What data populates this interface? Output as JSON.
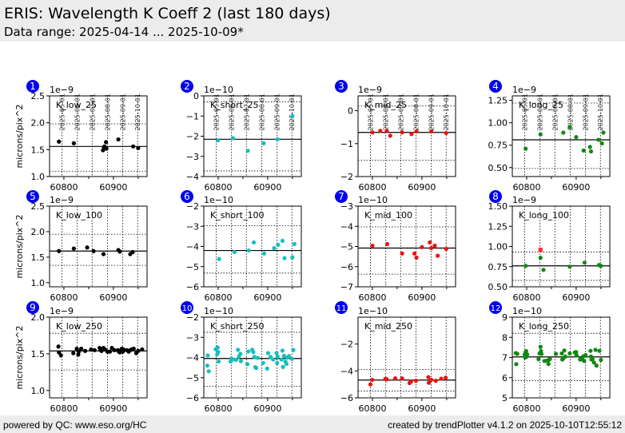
{
  "header": {
    "title": "ERIS: Wavelength K Coeff 2 (last 180 days)",
    "subtitle": "Data range: 2025-04-14 ... 2025-10-09*"
  },
  "footer": {
    "left": "powered by QC: www.eso.org/HC",
    "right": "created by trendPlotter v4.1.2 on 2025-10-10T12:55:12"
  },
  "colors": {
    "badge": "#0000ee",
    "low": "#000000",
    "short": "#17bebe",
    "mid": "#ee1111",
    "long": "#118811",
    "outlier": "#ff3333",
    "header_bg": "#ececec"
  },
  "chart_data": {
    "type": "scatter",
    "ylabel": "microns/pix^2",
    "xlim": [
      60771,
      60968
    ],
    "x_ticks": [
      60800,
      60900
    ],
    "x_tick_labels": [
      "60800",
      "60900"
    ],
    "date_ticks_mjd": [
      60796,
      60827,
      60857,
      60888,
      60919,
      60949
    ],
    "date_tick_labels": [
      "2025-05-01",
      "2025-06-01",
      "2025-07-01",
      "2025-08-01",
      "2025-09-01",
      "2025-10-01"
    ],
    "panels": [
      {
        "id": "1",
        "label": "K_low_25",
        "series": "low",
        "exponent": "1e−9",
        "ylim": [
          1.0,
          2.5
        ],
        "yticks": [
          1.0,
          1.5,
          2.0,
          2.5
        ],
        "ytick_labels": [
          "1.0",
          "1.5",
          "2.0",
          "2.5"
        ],
        "median": 1.56,
        "band": [
          1.1,
          1.98
        ],
        "x": [
          60790,
          60820,
          60879,
          60881,
          60882,
          60883,
          60885,
          60886,
          60910,
          60940,
          60950
        ],
        "y": [
          1.65,
          1.62,
          1.49,
          1.54,
          1.56,
          1.53,
          1.64,
          1.52,
          1.69,
          1.56,
          1.53
        ]
      },
      {
        "id": "2",
        "label": "K_short_25",
        "series": "short",
        "exponent": "1e−10",
        "ylim": [
          -4,
          0
        ],
        "yticks": [
          -4,
          -3,
          -2,
          -1,
          0
        ],
        "ytick_labels": [
          "−4",
          "−3",
          "−2",
          "−1",
          "0"
        ],
        "median": -2.15,
        "band": [
          -3.72,
          -0.3
        ],
        "x": [
          60800,
          60830,
          60860,
          60892,
          60920,
          60950
        ],
        "y": [
          -2.2,
          -2.1,
          -2.72,
          -2.35,
          -2.15,
          -1.0
        ]
      },
      {
        "id": "3",
        "label": "K_mid_25",
        "series": "mid",
        "exponent": "1e−9",
        "ylim": [
          -2,
          0.45
        ],
        "yticks": [
          -2,
          -1,
          0
        ],
        "ytick_labels": [
          "−2",
          "−1",
          "0"
        ],
        "median": -0.66,
        "band": [
          -1.5,
          0.14
        ],
        "x": [
          60800,
          60816,
          60829,
          60836,
          60860,
          60879,
          60889,
          60919,
          60949
        ],
        "y": [
          -0.66,
          -0.61,
          -0.61,
          -0.76,
          -0.66,
          -0.71,
          -0.63,
          -0.63,
          -0.68
        ]
      },
      {
        "id": "4",
        "label": "K_long_25",
        "series": "long",
        "exponent": "1e−9",
        "ylim": [
          0.4,
          1.3
        ],
        "yticks": [
          0.5,
          0.75,
          1.0,
          1.25
        ],
        "ytick_labels": [
          "0.50",
          "0.75",
          "1.00",
          "1.25"
        ],
        "median": 0.81,
        "band": [
          0.49,
          1.22
        ],
        "x": [
          60798,
          60828,
          60874,
          60887,
          60900,
          60915,
          60928,
          60930,
          60945,
          60952,
          60955
        ],
        "y": [
          0.71,
          0.87,
          0.89,
          0.95,
          0.84,
          0.69,
          0.73,
          0.68,
          0.81,
          0.77,
          0.89
        ]
      },
      {
        "id": "5",
        "label": "K_low_100",
        "series": "low",
        "exponent": "1e−9",
        "ylim": [
          0.92,
          2.5
        ],
        "yticks": [
          1.0,
          1.5,
          2.0,
          2.5
        ],
        "ytick_labels": [
          "1.0",
          "1.5",
          "2.0",
          "2.5"
        ],
        "median": 1.62,
        "band": [
          1.34,
          1.95
        ],
        "x": [
          60790,
          60820,
          60847,
          60860,
          60880,
          60910,
          60913,
          60934,
          60939
        ],
        "y": [
          1.62,
          1.67,
          1.69,
          1.62,
          1.56,
          1.64,
          1.61,
          1.56,
          1.6
        ]
      },
      {
        "id": "6",
        "label": "K_short_100",
        "series": "short",
        "exponent": "1e−10",
        "ylim": [
          -6,
          -2
        ],
        "yticks": [
          -6,
          -5,
          -4,
          -3,
          -2
        ],
        "ytick_labels": [
          "−6",
          "−5",
          "−4",
          "−3",
          "−2"
        ],
        "median": -4.2,
        "band": [
          -5.32,
          -2.97
        ],
        "x": [
          60802,
          60833,
          60862,
          60872,
          60893,
          60913,
          60921,
          60930,
          60934,
          60950,
          60954
        ],
        "y": [
          -4.62,
          -4.28,
          -4.2,
          -3.8,
          -4.35,
          -4.08,
          -3.92,
          -3.72,
          -4.58,
          -4.54,
          -3.88
        ]
      },
      {
        "id": "7",
        "label": "K_mid_100",
        "series": "mid",
        "exponent": "1e−10",
        "ylim": [
          -7,
          -3
        ],
        "yticks": [
          -7,
          -6,
          -5,
          -4,
          -3
        ],
        "ytick_labels": [
          "−7",
          "−6",
          "−5",
          "−4",
          "−3"
        ],
        "median": -5.08,
        "band": [
          -6.37,
          -4.03
        ],
        "x": [
          60800,
          60830,
          60860,
          60885,
          60889,
          60900,
          60916,
          60919,
          60926,
          60932,
          60949
        ],
        "y": [
          -4.96,
          -4.88,
          -5.35,
          -5.35,
          -5.55,
          -5.03,
          -4.8,
          -5.08,
          -4.96,
          -5.46,
          -5.12
        ]
      },
      {
        "id": "8",
        "label": "K_long_100",
        "series": "long",
        "exponent": "1e−9",
        "ylim": [
          0.5,
          1.5
        ],
        "yticks": [
          0.5,
          0.75,
          1.0,
          1.25,
          1.5
        ],
        "ytick_labels": [
          "0.50",
          "0.75",
          "1.00",
          "1.25",
          "1.50"
        ],
        "median": 0.76,
        "band": [
          0.58,
          0.93
        ],
        "x": [
          60798,
          60828,
          60834,
          60887,
          60917,
          60946,
          60950
        ],
        "y": [
          0.76,
          0.86,
          0.71,
          0.75,
          0.8,
          0.77,
          0.76
        ],
        "outliers": [
          {
            "x": 60828,
            "y": 0.96
          }
        ]
      },
      {
        "id": "9",
        "label": "K_low_250",
        "series": "low",
        "exponent": "1e−9",
        "ylim": [
          0.9,
          2.0
        ],
        "yticks": [
          1.0,
          1.5,
          2.0
        ],
        "ytick_labels": [
          "1.0",
          "1.5",
          "2.0"
        ],
        "median": 1.54,
        "band": [
          1.28,
          1.78
        ],
        "x": [
          60789,
          60790,
          60794,
          60819,
          60826,
          60829,
          60830,
          60835,
          60843,
          60855,
          60862,
          60872,
          60874,
          60876,
          60880,
          60883,
          60888,
          60893,
          60897,
          60902,
          60909,
          60911,
          60913,
          60915,
          60917,
          60919,
          60920,
          60927,
          60931,
          60934,
          60937,
          60941,
          60946,
          60950,
          60958
        ],
        "y": [
          1.6,
          1.52,
          1.48,
          1.51,
          1.57,
          1.49,
          1.53,
          1.57,
          1.54,
          1.56,
          1.55,
          1.58,
          1.55,
          1.54,
          1.58,
          1.56,
          1.53,
          1.53,
          1.58,
          1.55,
          1.55,
          1.53,
          1.52,
          1.55,
          1.57,
          1.53,
          1.56,
          1.55,
          1.53,
          1.55,
          1.56,
          1.57,
          1.51,
          1.54,
          1.56
        ]
      },
      {
        "id": "10",
        "label": "K_short_250",
        "series": "short",
        "exponent": "1e−10",
        "ylim": [
          -6,
          -2
        ],
        "yticks": [
          -6,
          -5,
          -4,
          -3,
          -2
        ],
        "ytick_labels": [
          "−6",
          "−5",
          "−4",
          "−3",
          "−2"
        ],
        "median": -4.05,
        "band": [
          -5.43,
          -2.75
        ],
        "x": [
          60778,
          60779,
          60781,
          60795,
          60798,
          60799,
          60800,
          60801,
          60825,
          60827,
          60829,
          60836,
          60840,
          60842,
          60845,
          60846,
          60859,
          60861,
          60869,
          60871,
          60873,
          60875,
          60877,
          60880,
          60891,
          60899,
          60901,
          60906,
          60911,
          60918,
          60919,
          60920,
          60928,
          60930,
          60931,
          60933,
          60936,
          60938,
          60940,
          60943,
          60949,
          60952
        ],
        "y": [
          -4.4,
          -3.9,
          -4.68,
          -3.59,
          -3.84,
          -3.5,
          -3.72,
          -4.2,
          -4.2,
          -4.05,
          -4.1,
          -4.12,
          -3.62,
          -3.95,
          -3.82,
          -4.18,
          -4.33,
          -3.7,
          -3.62,
          -3.73,
          -3.97,
          -4.48,
          -4.52,
          -4.02,
          -4.27,
          -4.55,
          -3.78,
          -3.97,
          -4.1,
          -3.78,
          -4.27,
          -3.95,
          -4.1,
          -3.66,
          -4.47,
          -3.92,
          -4.2,
          -4.32,
          -4.0,
          -3.93,
          -4.07,
          -3.63
        ]
      },
      {
        "id": "11",
        "label": "K_mid_250",
        "series": "mid",
        "exponent": "1e−10",
        "ylim": [
          -6,
          0
        ],
        "yticks": [
          -6,
          -4,
          -2
        ],
        "ytick_labels": [
          "−6",
          "−4",
          "−2"
        ],
        "median": -4.68,
        "band": [
          -5.5,
          -3.9
        ],
        "x": [
          60796,
          60800,
          60826,
          60829,
          60846,
          60860,
          60875,
          60878,
          60888,
          60913,
          60914,
          60919,
          60928,
          60939,
          60948
        ],
        "y": [
          -5.0,
          -4.66,
          -4.6,
          -4.62,
          -4.55,
          -4.56,
          -4.9,
          -4.8,
          -4.73,
          -4.46,
          -4.88,
          -4.66,
          -4.73,
          -4.57,
          -4.5
        ]
      },
      {
        "id": "12",
        "label": "K_long_250",
        "series": "long",
        "exponent": "1e−10",
        "ylim": [
          5,
          9
        ],
        "yticks": [
          5,
          6,
          7,
          8,
          9
        ],
        "ytick_labels": [
          "5",
          "6",
          "7",
          "8",
          "9"
        ],
        "median": 7.03,
        "band": [
          5.85,
          8.2
        ],
        "x": [
          60778,
          60779,
          60781,
          60796,
          60797,
          60798,
          60799,
          60800,
          60801,
          60824,
          60826,
          60828,
          60829,
          60830,
          60836,
          60841,
          60844,
          60845,
          60847,
          60859,
          60871,
          60872,
          60874,
          60876,
          60878,
          60887,
          60897,
          60900,
          60901,
          60908,
          60912,
          60914,
          60916,
          60919,
          60929,
          60930,
          60931,
          60933,
          60936,
          60939,
          60941,
          60947,
          60950
        ],
        "y": [
          7.22,
          6.67,
          7.18,
          7.15,
          7.0,
          7.27,
          7.32,
          7.05,
          7.15,
          6.92,
          7.2,
          7.53,
          7.32,
          7.18,
          6.83,
          6.85,
          6.68,
          6.88,
          6.93,
          7.18,
          7.2,
          6.9,
          6.95,
          7.35,
          7.05,
          7.2,
          7.25,
          7.27,
          7.1,
          6.9,
          6.92,
          7.05,
          6.83,
          7.12,
          7.33,
          7.05,
          6.9,
          6.92,
          6.75,
          7.38,
          6.6,
          7.33,
          6.88
        ]
      }
    ]
  }
}
